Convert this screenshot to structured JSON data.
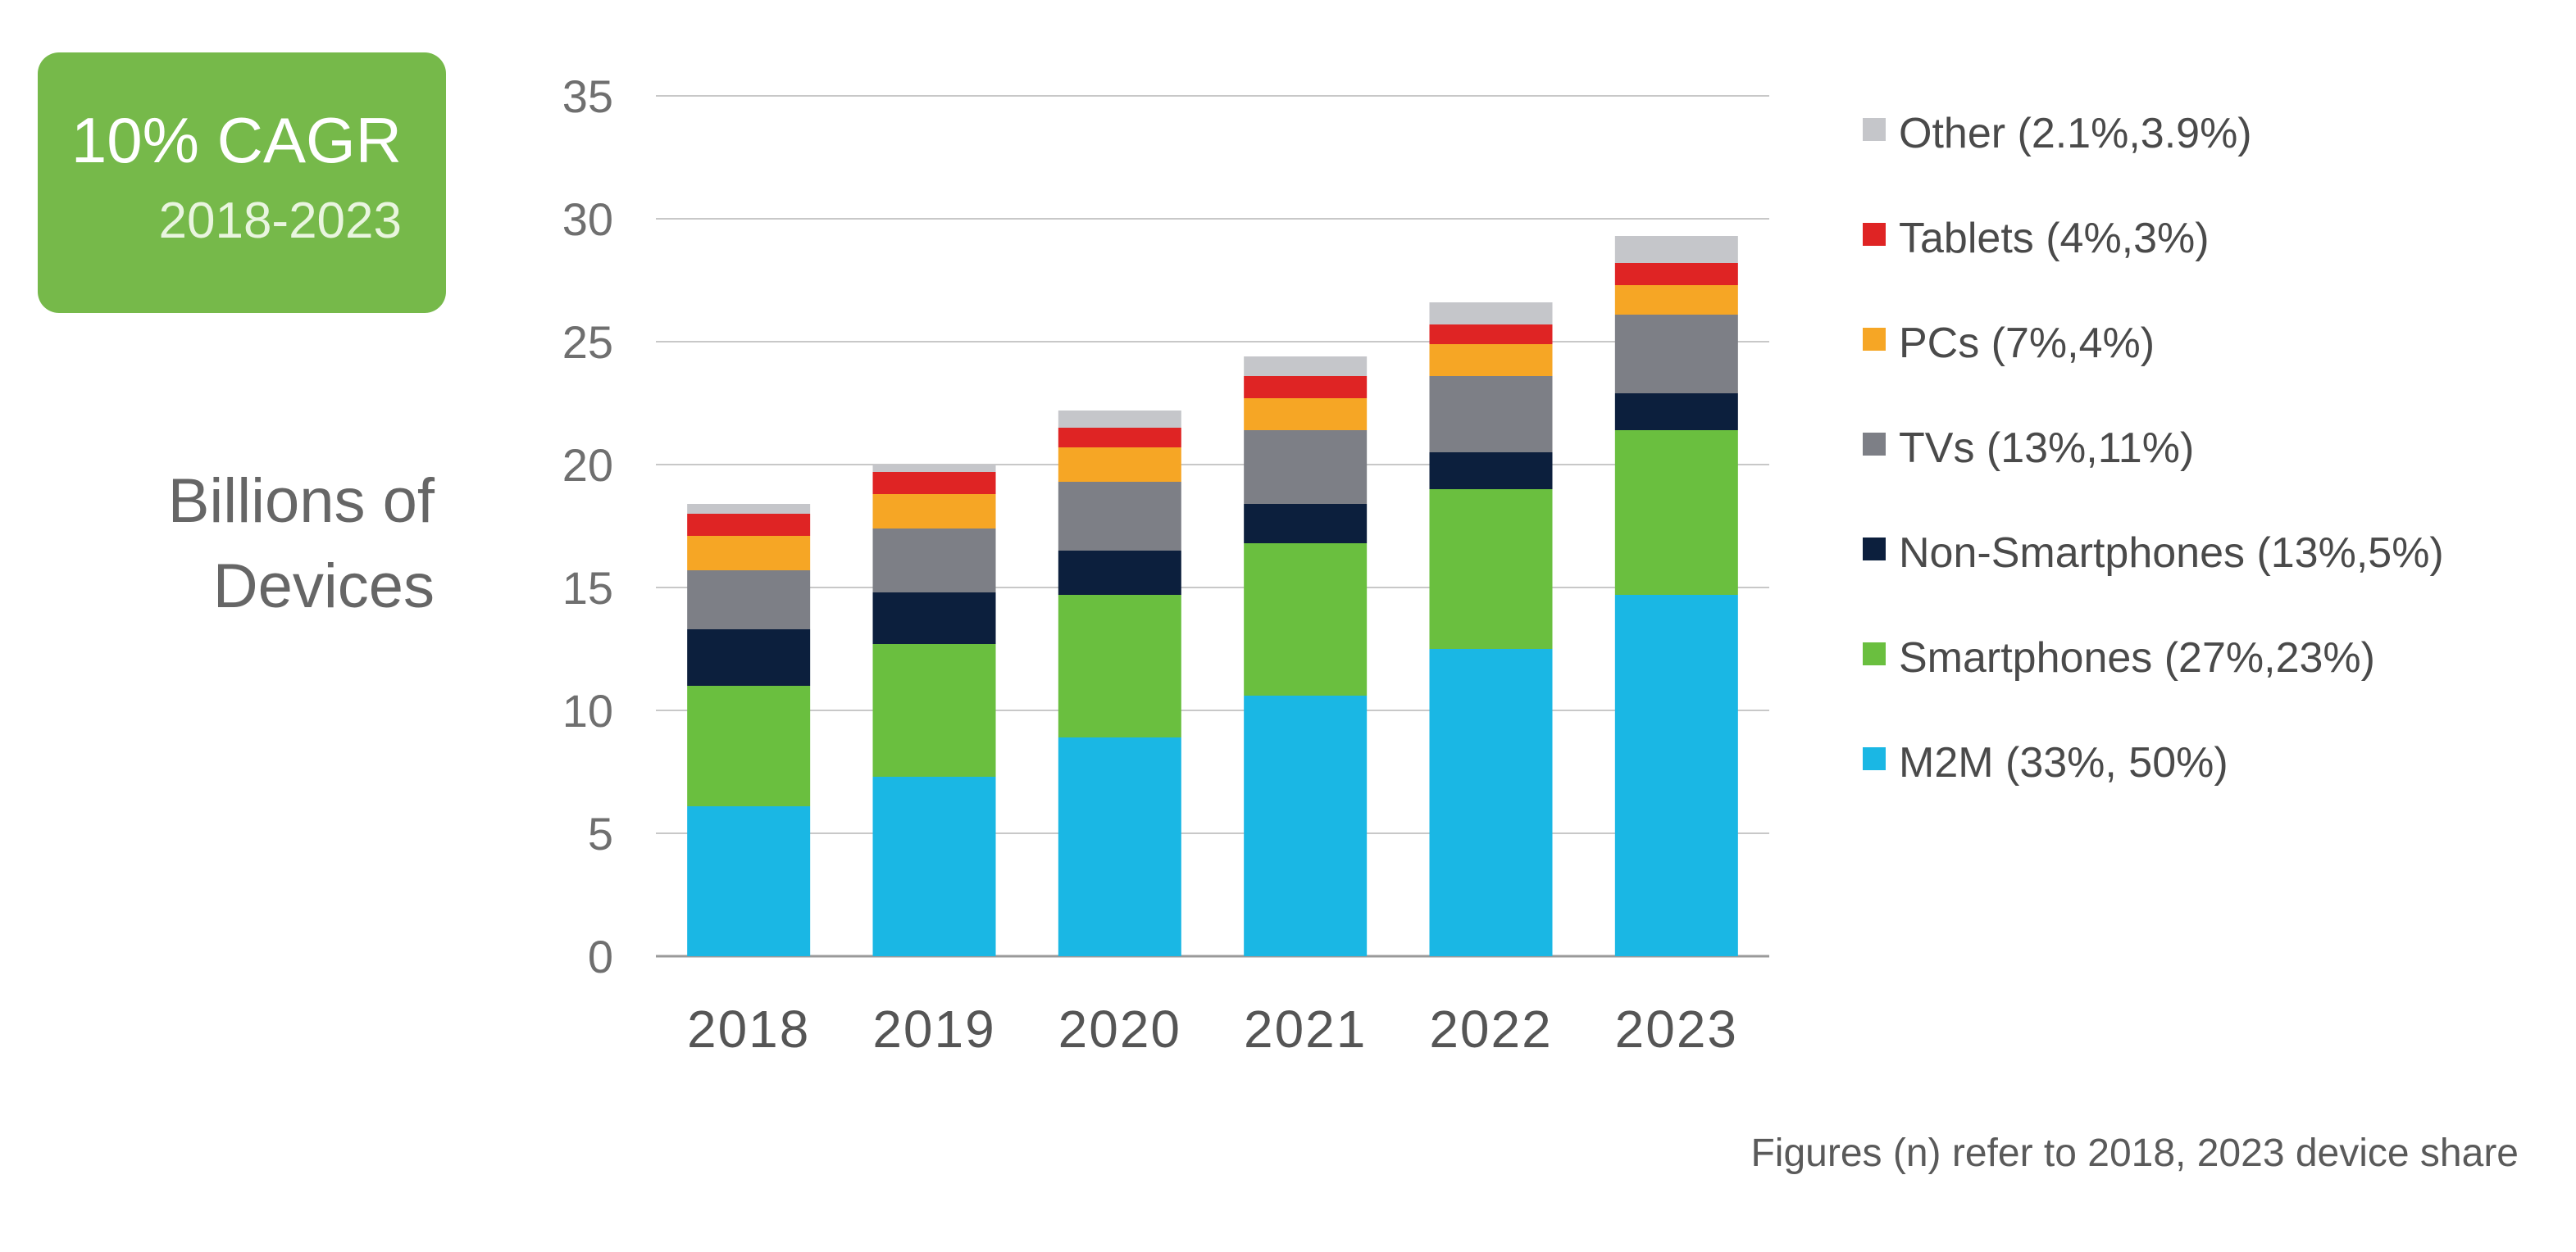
{
  "badge": {
    "title": "10% CAGR",
    "period": "2018-2023",
    "color": "#76b94a"
  },
  "chart_data": {
    "type": "bar",
    "stacked": true,
    "title": "",
    "xlabel": "",
    "ylabel_lines": [
      "Billions of",
      "Devices"
    ],
    "ylim": [
      0,
      35
    ],
    "yticks": [
      0,
      5,
      10,
      15,
      20,
      25,
      30,
      35
    ],
    "grid": true,
    "legend_position": "right",
    "categories": [
      "2018",
      "2019",
      "2020",
      "2021",
      "2022",
      "2023"
    ],
    "series": [
      {
        "name": "M2M (33%, 50%)",
        "color": "#1ab7e4",
        "values": [
          6.1,
          7.3,
          8.9,
          10.6,
          12.5,
          14.7
        ]
      },
      {
        "name": "Smartphones (27%,23%)",
        "color": "#6abf3f",
        "values": [
          4.9,
          5.4,
          5.8,
          6.2,
          6.5,
          6.7
        ]
      },
      {
        "name": "Non-Smartphones (13%,5%)",
        "color": "#0c1f3d",
        "values": [
          2.3,
          2.1,
          1.8,
          1.6,
          1.5,
          1.5
        ]
      },
      {
        "name": "TVs (13%,11%)",
        "color": "#7d7f86",
        "values": [
          2.4,
          2.6,
          2.8,
          3.0,
          3.1,
          3.2
        ]
      },
      {
        "name": "PCs (7%,4%)",
        "color": "#f6a625",
        "values": [
          1.4,
          1.4,
          1.4,
          1.3,
          1.3,
          1.2
        ]
      },
      {
        "name": "Tablets (4%,3%)",
        "color": "#df2424",
        "values": [
          0.9,
          0.9,
          0.8,
          0.9,
          0.8,
          0.9
        ]
      },
      {
        "name": "Other (2.1%,3.9%)",
        "color": "#c5c6ca",
        "values": [
          0.4,
          0.3,
          0.7,
          0.8,
          0.9,
          1.1
        ]
      }
    ],
    "footnote": "Figures (n) refer to 2018, 2023 device share"
  }
}
